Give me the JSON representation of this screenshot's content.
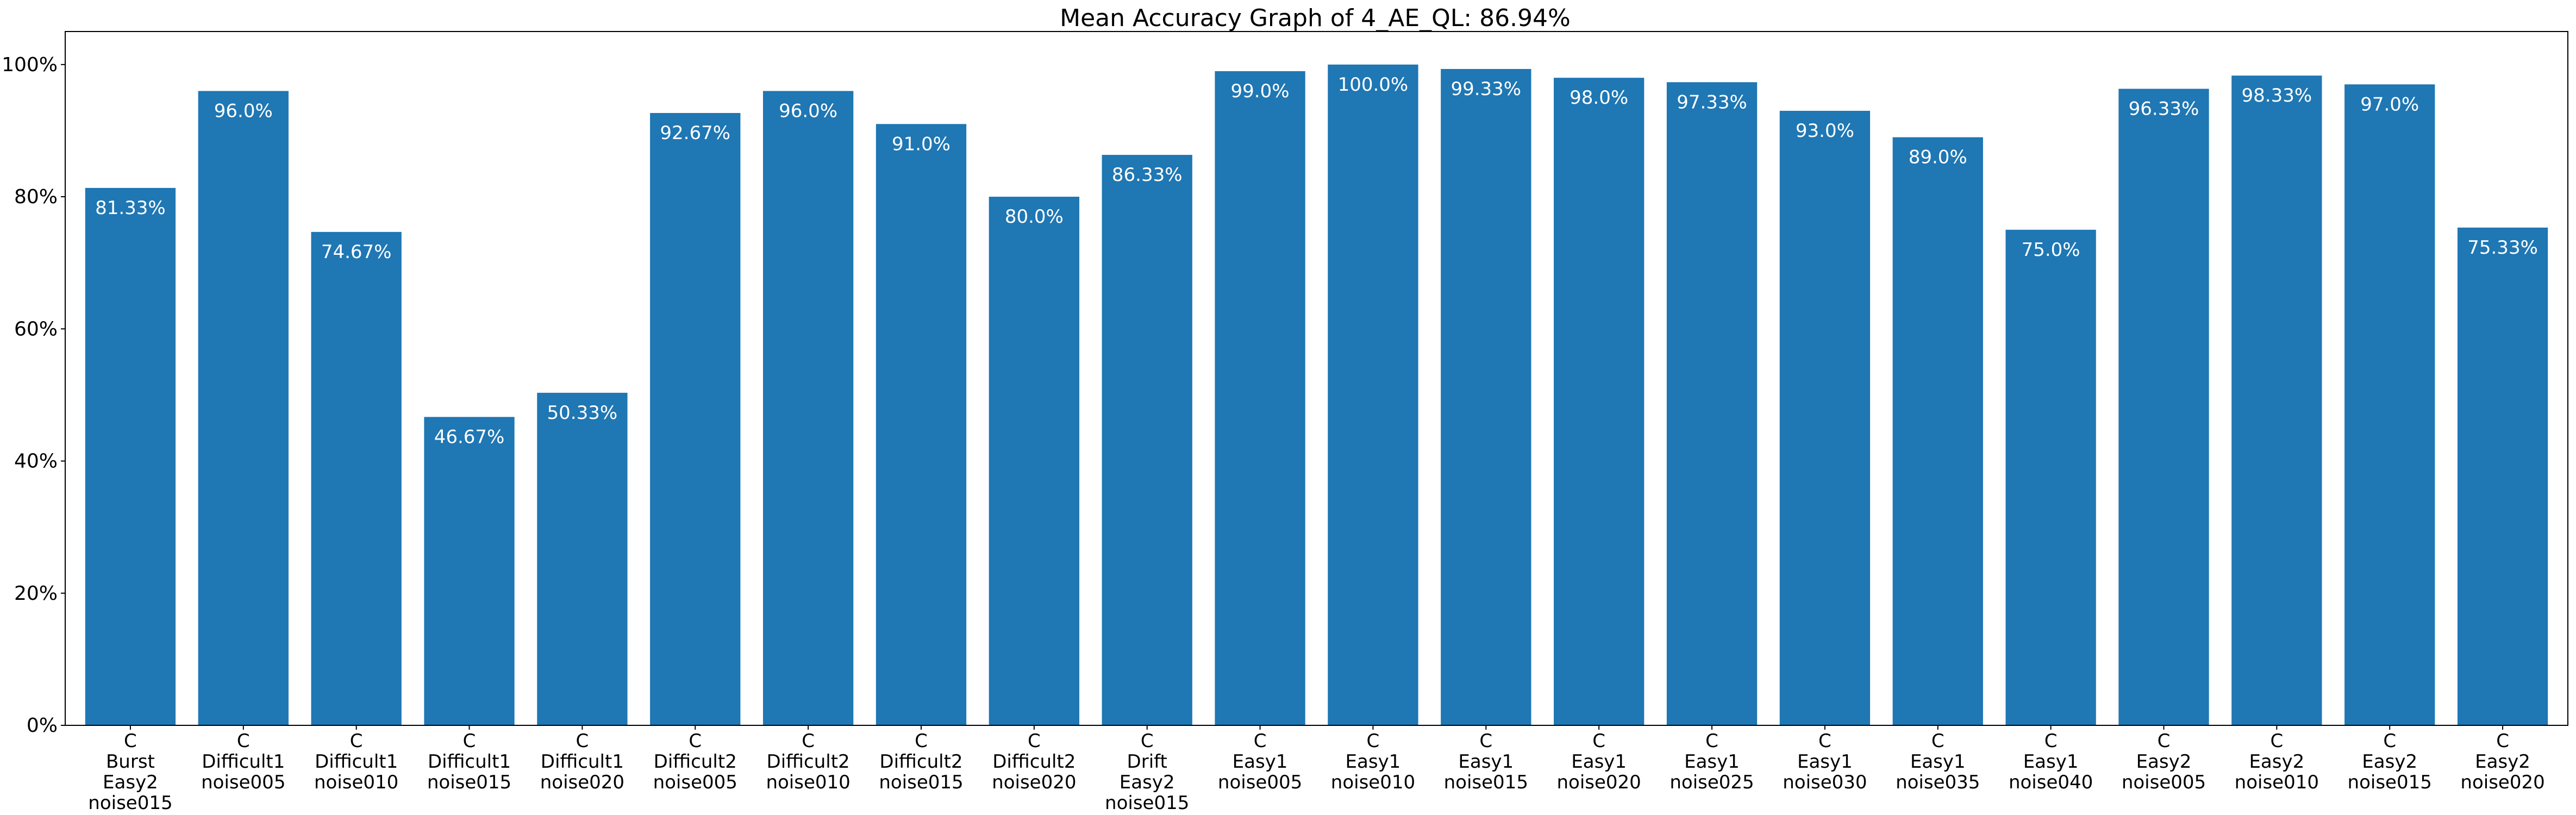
{
  "chart_data": {
    "type": "bar",
    "title": "Mean Accuracy Graph of 4_AE_QL: 86.94%",
    "xlabel": "",
    "ylabel": "",
    "ylim": [
      0,
      105
    ],
    "y_ticks": [
      0,
      20,
      40,
      60,
      80,
      100
    ],
    "y_tick_labels": [
      "0%",
      "20%",
      "40%",
      "60%",
      "80%",
      "100%"
    ],
    "grid": false,
    "bar_color": "#1f77b4",
    "label_color": "#ffffff",
    "categories": [
      [
        "C",
        "Burst",
        "Easy2",
        "noise015"
      ],
      [
        "C",
        "Difficult1",
        "noise005"
      ],
      [
        "C",
        "Difficult1",
        "noise010"
      ],
      [
        "C",
        "Difficult1",
        "noise015"
      ],
      [
        "C",
        "Difficult1",
        "noise020"
      ],
      [
        "C",
        "Difficult2",
        "noise005"
      ],
      [
        "C",
        "Difficult2",
        "noise010"
      ],
      [
        "C",
        "Difficult2",
        "noise015"
      ],
      [
        "C",
        "Difficult2",
        "noise020"
      ],
      [
        "C",
        "Drift",
        "Easy2",
        "noise015"
      ],
      [
        "C",
        "Easy1",
        "noise005"
      ],
      [
        "C",
        "Easy1",
        "noise010"
      ],
      [
        "C",
        "Easy1",
        "noise015"
      ],
      [
        "C",
        "Easy1",
        "noise020"
      ],
      [
        "C",
        "Easy1",
        "noise025"
      ],
      [
        "C",
        "Easy1",
        "noise030"
      ],
      [
        "C",
        "Easy1",
        "noise035"
      ],
      [
        "C",
        "Easy1",
        "noise040"
      ],
      [
        "C",
        "Easy2",
        "noise005"
      ],
      [
        "C",
        "Easy2",
        "noise010"
      ],
      [
        "C",
        "Easy2",
        "noise015"
      ],
      [
        "C",
        "Easy2",
        "noise020"
      ]
    ],
    "values": [
      81.33,
      96.0,
      74.67,
      46.67,
      50.33,
      92.67,
      96.0,
      91.0,
      80.0,
      86.33,
      99.0,
      100.0,
      99.33,
      98.0,
      97.33,
      93.0,
      89.0,
      75.0,
      96.33,
      98.33,
      97.0,
      75.33
    ],
    "value_labels": [
      "81.33%",
      "96.0%",
      "74.67%",
      "46.67%",
      "50.33%",
      "92.67%",
      "96.0%",
      "91.0%",
      "80.0%",
      "86.33%",
      "99.0%",
      "100.0%",
      "99.33%",
      "98.0%",
      "97.33%",
      "93.0%",
      "89.0%",
      "75.0%",
      "96.33%",
      "98.33%",
      "97.0%",
      "75.33%"
    ]
  }
}
